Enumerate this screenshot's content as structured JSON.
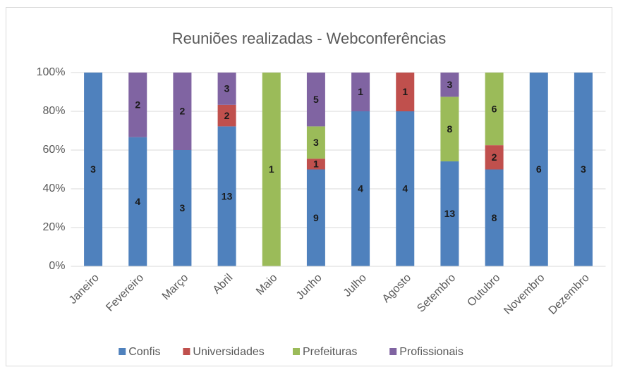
{
  "chart_data": {
    "type": "bar",
    "stacked": "percent",
    "title": "Reuniões realizadas - Webconferências",
    "categories": [
      "Janeiro",
      "Fevereiro",
      "Março",
      "Abril",
      "Maio",
      "Junho",
      "Julho",
      "Agosto",
      "Setembro",
      "Outubro",
      "Novembro",
      "Dezembro"
    ],
    "series": [
      {
        "name": "Confis",
        "color": "#4f81bd",
        "values": [
          3,
          4,
          3,
          13,
          null,
          9,
          4,
          4,
          13,
          8,
          6,
          3
        ]
      },
      {
        "name": "Universidades",
        "color": "#c0504d",
        "values": [
          null,
          null,
          null,
          2,
          null,
          1,
          null,
          1,
          null,
          2,
          null,
          null
        ]
      },
      {
        "name": "Prefeituras",
        "color": "#9bbb59",
        "values": [
          null,
          null,
          null,
          null,
          1,
          3,
          null,
          null,
          8,
          6,
          null,
          null
        ]
      },
      {
        "name": "Profissionais",
        "color": "#8064a2",
        "values": [
          null,
          2,
          2,
          3,
          null,
          5,
          1,
          null,
          3,
          null,
          null,
          null
        ]
      }
    ],
    "ylim": [
      0,
      100
    ],
    "yticks": [
      {
        "value": 0,
        "label": "0%"
      },
      {
        "value": 20,
        "label": "20%"
      },
      {
        "value": 40,
        "label": "40%"
      },
      {
        "value": 60,
        "label": "60%"
      },
      {
        "value": 80,
        "label": "80%"
      },
      {
        "value": 100,
        "label": "100%"
      }
    ],
    "grid": true,
    "legend": "bottom"
  }
}
